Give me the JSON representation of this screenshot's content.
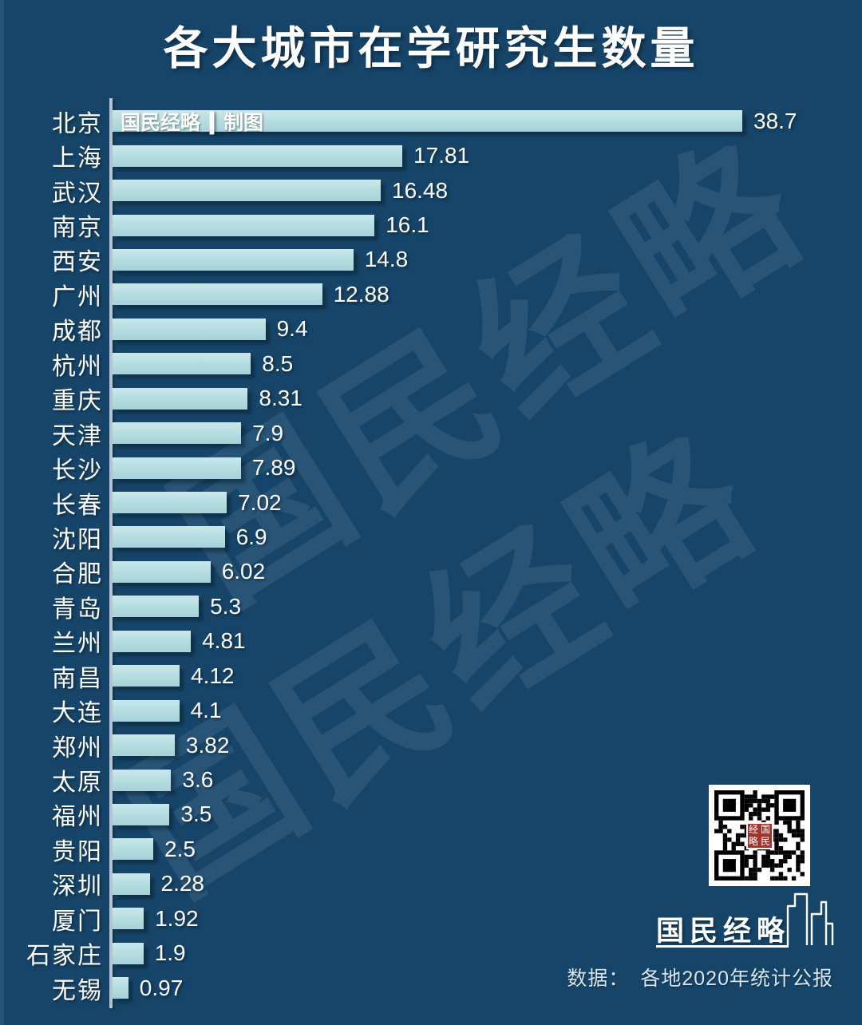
{
  "title": "各大城市在学研究生数量",
  "chart_data": {
    "type": "bar",
    "orientation": "horizontal",
    "title": "各大城市在学研究生数量",
    "categories": [
      "北京",
      "上海",
      "武汉",
      "南京",
      "西安",
      "广州",
      "成都",
      "杭州",
      "重庆",
      "天津",
      "长沙",
      "长春",
      "沈阳",
      "合肥",
      "青岛",
      "兰州",
      "南昌",
      "大连",
      "郑州",
      "太原",
      "福州",
      "贵阳",
      "深圳",
      "厦门",
      "石家庄",
      "无锡"
    ],
    "values": [
      38.7,
      17.81,
      16.48,
      16.1,
      14.8,
      12.88,
      9.4,
      8.5,
      8.31,
      7.9,
      7.89,
      7.02,
      6.9,
      6.02,
      5.3,
      4.81,
      4.12,
      4.1,
      3.82,
      3.6,
      3.5,
      2.5,
      2.28,
      1.92,
      1.9,
      0.97
    ],
    "value_labels": [
      "38.7",
      "17.81",
      "16.48",
      "16.1",
      "14.8",
      "12.88",
      "9.4",
      "8.5",
      "8.31",
      "7.9",
      "7.89",
      "7.02",
      "6.9",
      "6.02",
      "5.3",
      "4.81",
      "4.12",
      "4.1",
      "3.82",
      "3.6",
      "3.5",
      "2.5",
      "2.28",
      "1.92",
      "1.9",
      "0.97"
    ],
    "xlim": [
      0,
      38.7
    ],
    "grid": false,
    "legend": false,
    "bar_color": "#b4dbe0",
    "background_color": "#164569",
    "label_color": "#ffffff"
  },
  "credit": {
    "brand": "国民经略",
    "separator": "|",
    "label": "制图"
  },
  "watermark": {
    "text": "国民经略"
  },
  "qr_badge": [
    "经",
    "国",
    "略",
    "民"
  ],
  "footer": {
    "logo_text": "国民经略",
    "source_label": "数据：",
    "source_value": "各地2020年统计公报"
  }
}
